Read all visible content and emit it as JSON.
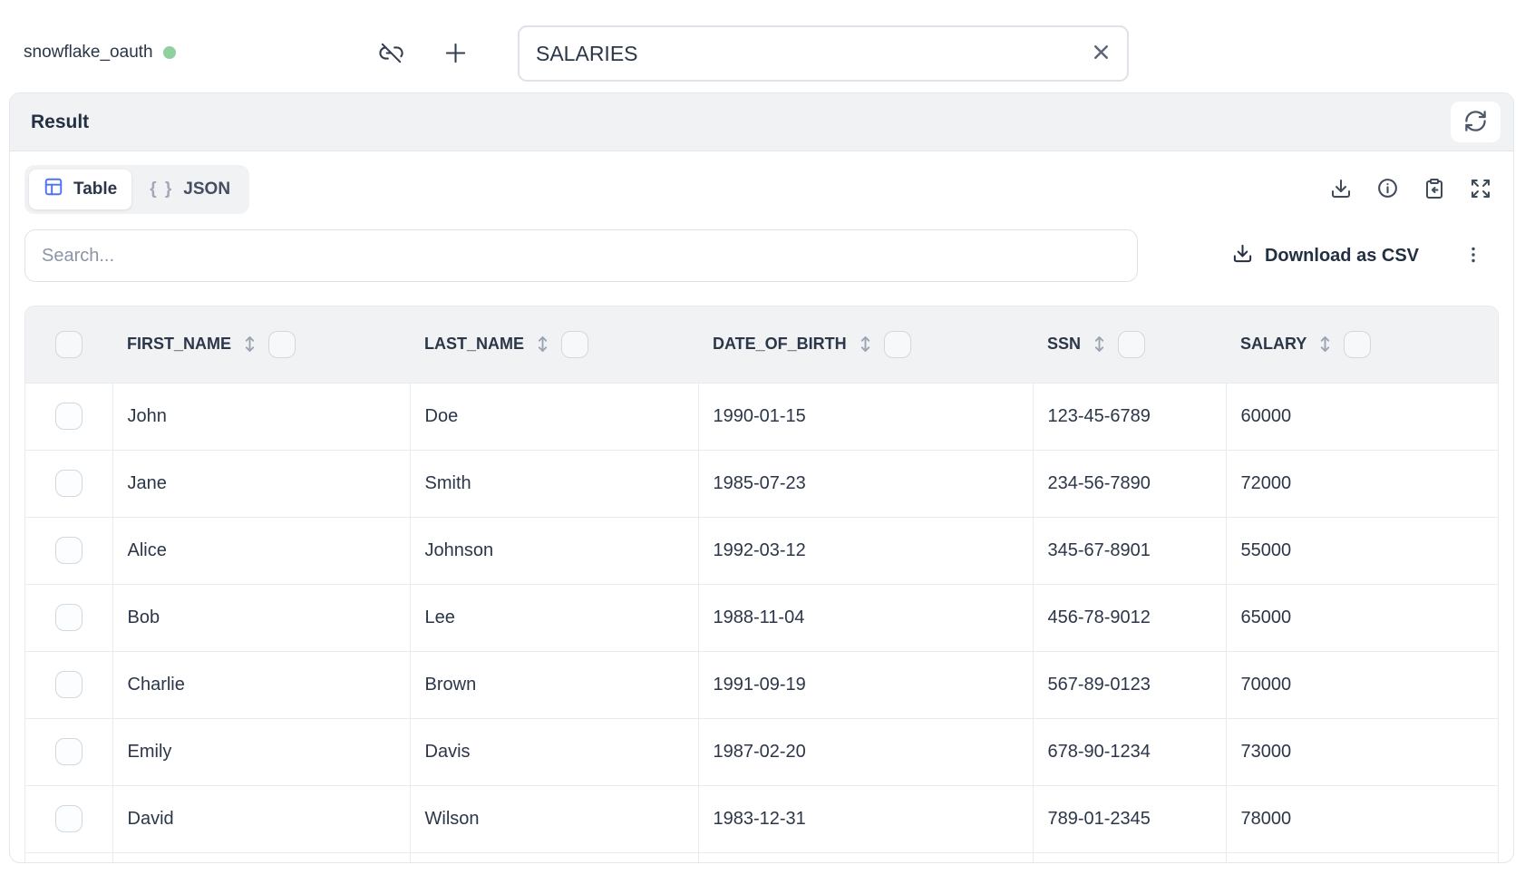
{
  "colors": {
    "accent_blue": "#4d72f5",
    "status_green": "#90cf9e"
  },
  "topbar": {
    "connection_name": "snowflake_oauth",
    "table_input_value": "SALARIES"
  },
  "panel": {
    "title": "Result",
    "tabs": [
      {
        "label": "Table"
      },
      {
        "label": "JSON"
      }
    ],
    "json_braces": "{ }",
    "search_placeholder": "Search...",
    "download_csv_label": "Download as CSV"
  },
  "table": {
    "columns": [
      "FIRST_NAME",
      "LAST_NAME",
      "DATE_OF_BIRTH",
      "SSN",
      "SALARY"
    ],
    "rows": [
      [
        "John",
        "Doe",
        "1990-01-15",
        "123-45-6789",
        "60000"
      ],
      [
        "Jane",
        "Smith",
        "1985-07-23",
        "234-56-7890",
        "72000"
      ],
      [
        "Alice",
        "Johnson",
        "1992-03-12",
        "345-67-8901",
        "55000"
      ],
      [
        "Bob",
        "Lee",
        "1988-11-04",
        "456-78-9012",
        "65000"
      ],
      [
        "Charlie",
        "Brown",
        "1991-09-19",
        "567-89-0123",
        "70000"
      ],
      [
        "Emily",
        "Davis",
        "1987-02-20",
        "678-90-1234",
        "73000"
      ],
      [
        "David",
        "Wilson",
        "1983-12-31",
        "789-01-2345",
        "78000"
      ]
    ]
  },
  "icons": {
    "status": "green-dot",
    "disconnect": "link-off-icon",
    "add": "plus-icon",
    "clear": "close-icon",
    "refresh": "refresh-icon",
    "table_view": "table-icon",
    "json_view": "braces-icon",
    "download": "download-icon",
    "info": "info-icon",
    "clipboard": "clipboard-paste-icon",
    "expand": "expand-icon",
    "more": "kebab-menu-icon",
    "sort": "sort-icon",
    "checkbox": "checkbox"
  }
}
